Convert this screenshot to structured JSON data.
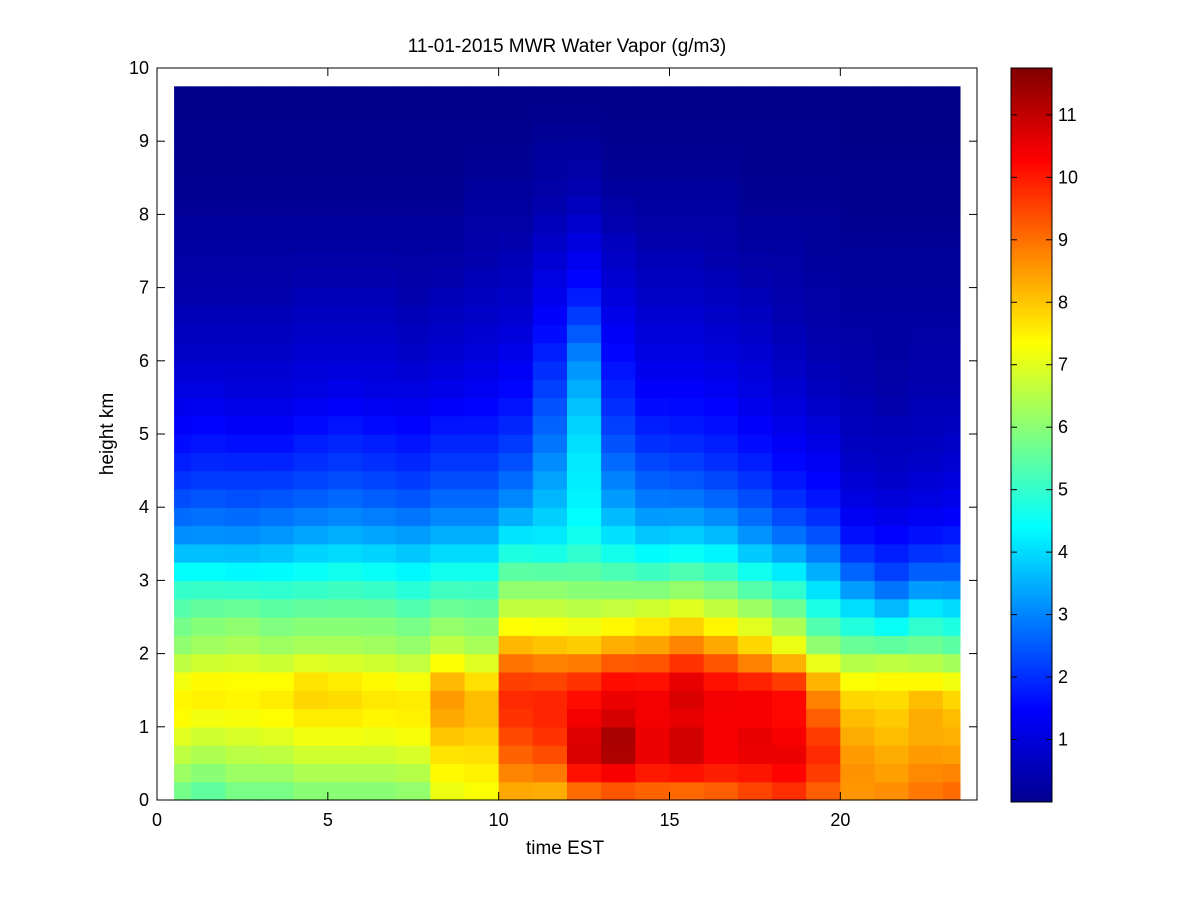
{
  "chart_data": {
    "type": "heatmap",
    "title": "11-01-2015 MWR Water Vapor (g/m3)",
    "xlabel": "time EST",
    "ylabel": "height km",
    "xlim": [
      0,
      24
    ],
    "ylim": [
      0,
      10
    ],
    "xticks": [
      0,
      5,
      10,
      15,
      20
    ],
    "yticks": [
      0,
      1,
      2,
      3,
      4,
      5,
      6,
      7,
      8,
      9,
      10
    ],
    "colormap": "jet",
    "colorbar": {
      "min": 0,
      "max": 11.75,
      "ticks": [
        1,
        2,
        3,
        4,
        5,
        6,
        7,
        8,
        9,
        10,
        11
      ]
    },
    "grid": false,
    "time_hours": [
      0,
      1,
      2,
      3,
      4,
      5,
      6,
      7,
      8,
      9,
      10,
      11,
      12,
      13,
      14,
      15,
      16,
      17,
      18,
      19,
      20,
      21,
      22,
      23
    ],
    "profile_heights_km": [
      0,
      0.25,
      0.5,
      0.75,
      1,
      1.25,
      1.5,
      1.75,
      2,
      2.5,
      3,
      3.5,
      4,
      4.5,
      5,
      5.5,
      6,
      6.5,
      7,
      7.5,
      8,
      8.5,
      9,
      9.75
    ],
    "profiles_g_m3": [
      [
        5.5,
        6.0,
        6.4,
        6.8,
        7.2,
        7.5,
        7.4,
        7.0,
        6.2,
        5.6,
        4.8,
        3.3,
        2.5,
        1.9,
        1.5,
        1.2,
        0.9,
        0.7,
        0.5,
        0.4,
        0.3,
        0.2,
        0.2,
        0.1
      ],
      [
        5.2,
        5.8,
        6.2,
        6.6,
        7.0,
        7.4,
        7.6,
        7.2,
        6.4,
        5.8,
        4.8,
        3.3,
        2.6,
        2.0,
        1.6,
        1.2,
        0.9,
        0.7,
        0.5,
        0.4,
        0.3,
        0.2,
        0.2,
        0.1
      ],
      [
        5.6,
        6.0,
        6.4,
        6.7,
        7.1,
        7.4,
        7.5,
        7.2,
        6.5,
        5.9,
        4.7,
        3.3,
        2.5,
        2.0,
        1.5,
        1.1,
        0.9,
        0.7,
        0.5,
        0.4,
        0.3,
        0.2,
        0.2,
        0.1
      ],
      [
        5.6,
        6.0,
        6.4,
        6.8,
        7.2,
        7.5,
        7.6,
        7.1,
        6.4,
        5.7,
        4.7,
        3.4,
        2.6,
        2.0,
        1.5,
        1.1,
        0.9,
        0.7,
        0.5,
        0.4,
        0.3,
        0.2,
        0.2,
        0.1
      ],
      [
        5.8,
        6.2,
        6.6,
        7.0,
        7.4,
        7.7,
        7.9,
        7.4,
        6.5,
        5.8,
        4.8,
        3.6,
        2.7,
        2.1,
        1.7,
        1.2,
        1.0,
        0.8,
        0.6,
        0.4,
        0.3,
        0.2,
        0.2,
        0.1
      ],
      [
        5.8,
        6.2,
        6.6,
        7.0,
        7.4,
        7.7,
        7.8,
        7.3,
        6.5,
        5.8,
        4.9,
        3.7,
        2.8,
        2.2,
        1.8,
        1.3,
        1.0,
        0.8,
        0.6,
        0.4,
        0.3,
        0.2,
        0.2,
        0.1
      ],
      [
        5.8,
        6.2,
        6.6,
        7.0,
        7.3,
        7.6,
        7.6,
        7.2,
        6.4,
        5.8,
        4.8,
        3.6,
        2.7,
        2.1,
        1.7,
        1.2,
        1.0,
        0.8,
        0.6,
        0.4,
        0.3,
        0.2,
        0.2,
        0.1
      ],
      [
        5.9,
        6.3,
        6.7,
        7.1,
        7.4,
        7.6,
        7.5,
        7.0,
        6.3,
        5.6,
        4.6,
        3.5,
        2.6,
        2.0,
        1.6,
        1.2,
        0.9,
        0.7,
        0.5,
        0.4,
        0.3,
        0.2,
        0.2,
        0.1
      ],
      [
        7.0,
        7.3,
        7.5,
        7.8,
        8.2,
        8.5,
        8.5,
        7.8,
        6.8,
        5.9,
        4.9,
        3.7,
        2.8,
        2.2,
        1.8,
        1.3,
        1.0,
        0.8,
        0.6,
        0.4,
        0.3,
        0.2,
        0.2,
        0.1
      ],
      [
        7.2,
        7.4,
        7.6,
        7.8,
        8.0,
        8.2,
        8.0,
        7.4,
        6.5,
        5.8,
        4.9,
        3.7,
        2.8,
        2.2,
        1.8,
        1.4,
        1.1,
        0.9,
        0.7,
        0.5,
        0.4,
        0.3,
        0.2,
        0.1
      ],
      [
        8.2,
        8.5,
        9.0,
        9.3,
        9.6,
        9.8,
        9.8,
        9.3,
        8.6,
        6.9,
        5.8,
        4.4,
        3.2,
        2.5,
        2.0,
        1.6,
        1.3,
        1.0,
        0.8,
        0.6,
        0.4,
        0.3,
        0.2,
        0.1
      ],
      [
        8.0,
        8.6,
        9.2,
        9.6,
        9.8,
        9.9,
        9.8,
        9.2,
        8.4,
        6.9,
        5.8,
        4.3,
        3.7,
        3.2,
        2.7,
        2.3,
        1.9,
        1.5,
        1.2,
        0.9,
        0.6,
        0.4,
        0.3,
        0.1
      ],
      [
        8.5,
        9.6,
        10.6,
        10.8,
        10.5,
        10.3,
        10.0,
        9.4,
        8.3,
        6.8,
        5.7,
        4.7,
        4.3,
        4.2,
        4.0,
        3.6,
        3.1,
        2.3,
        1.6,
        1.2,
        0.8,
        0.5,
        0.3,
        0.1
      ],
      [
        8.8,
        9.8,
        10.9,
        11.5,
        11.0,
        10.5,
        10.5,
        9.8,
        8.7,
        7.0,
        5.6,
        4.3,
        3.4,
        2.8,
        2.3,
        1.9,
        1.6,
        1.3,
        1.0,
        0.8,
        0.5,
        0.3,
        0.2,
        0.1
      ],
      [
        8.7,
        9.6,
        10.4,
        10.6,
        10.4,
        10.4,
        10.4,
        9.8,
        8.8,
        7.2,
        5.5,
        4.0,
        3.0,
        2.4,
        1.9,
        1.5,
        1.2,
        1.0,
        0.8,
        0.6,
        0.4,
        0.3,
        0.2,
        0.1
      ],
      [
        8.6,
        9.6,
        10.6,
        11.0,
        10.6,
        10.5,
        10.9,
        10.2,
        9.2,
        7.4,
        5.7,
        4.1,
        3.0,
        2.3,
        1.8,
        1.5,
        1.2,
        1.0,
        0.8,
        0.6,
        0.4,
        0.3,
        0.2,
        0.1
      ],
      [
        8.8,
        9.6,
        10.3,
        10.4,
        10.3,
        10.4,
        10.4,
        9.8,
        8.8,
        7.0,
        5.5,
        3.9,
        2.8,
        2.1,
        1.7,
        1.4,
        1.1,
        0.9,
        0.7,
        0.5,
        0.4,
        0.3,
        0.2,
        0.1
      ],
      [
        9.2,
        9.8,
        10.3,
        10.7,
        10.4,
        10.3,
        10.4,
        9.4,
        8.2,
        6.6,
        5.0,
        3.4,
        2.5,
        1.9,
        1.5,
        1.2,
        1.0,
        0.8,
        0.6,
        0.4,
        0.3,
        0.2,
        0.2,
        0.1
      ],
      [
        9.5,
        10.0,
        10.5,
        10.5,
        10.2,
        10.2,
        10.2,
        9.0,
        7.5,
        6.0,
        4.6,
        3.0,
        2.1,
        1.6,
        1.3,
        1.0,
        0.8,
        0.6,
        0.5,
        0.4,
        0.3,
        0.2,
        0.2,
        0.1
      ],
      [
        9.0,
        9.4,
        9.8,
        9.8,
        9.4,
        9.0,
        8.6,
        7.8,
        6.4,
        5.0,
        3.8,
        2.6,
        1.8,
        1.4,
        1.1,
        0.8,
        0.6,
        0.5,
        0.4,
        0.3,
        0.3,
        0.2,
        0.2,
        0.1
      ],
      [
        8.5,
        8.6,
        8.6,
        8.4,
        8.2,
        8.0,
        7.6,
        7.0,
        6.0,
        4.4,
        2.9,
        1.8,
        1.2,
        0.9,
        0.7,
        0.6,
        0.5,
        0.4,
        0.3,
        0.3,
        0.2,
        0.2,
        0.1,
        0.1
      ],
      [
        8.8,
        8.5,
        8.4,
        8.2,
        8.0,
        7.9,
        7.6,
        7.2,
        6.0,
        4.0,
        2.4,
        1.6,
        1.1,
        0.8,
        0.7,
        0.5,
        0.4,
        0.4,
        0.3,
        0.3,
        0.2,
        0.2,
        0.1,
        0.1
      ],
      [
        9.0,
        8.8,
        8.6,
        8.4,
        8.2,
        8.4,
        7.8,
        7.0,
        6.0,
        4.6,
        2.8,
        1.8,
        1.2,
        0.9,
        0.7,
        0.6,
        0.5,
        0.4,
        0.3,
        0.3,
        0.2,
        0.2,
        0.1,
        0.1
      ],
      [
        9.2,
        8.9,
        8.6,
        8.3,
        8.2,
        8.0,
        7.6,
        6.8,
        5.8,
        4.4,
        2.8,
        1.9,
        1.3,
        1.0,
        0.8,
        0.6,
        0.5,
        0.4,
        0.3,
        0.3,
        0.2,
        0.2,
        0.1,
        0.1
      ]
    ]
  }
}
